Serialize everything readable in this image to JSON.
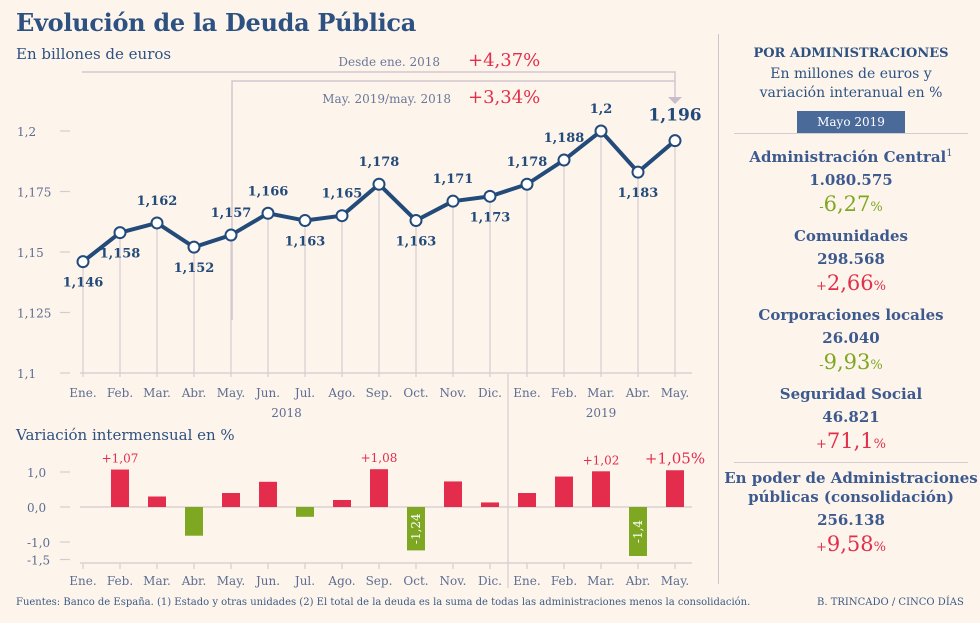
{
  "title": "Evolución de la Deuda Pública",
  "subtitle": "En billones de euros",
  "bar_subtitle": "Variación intermensual en %",
  "annotations": {
    "since_label": "Desde ene. 2018",
    "since_value": "+4,37%",
    "yoy_label": "May. 2019/may. 2018",
    "yoy_value": "+3,34%"
  },
  "footer": "Fuentes: Banco de España. (1) Estado y otras unidades (2) El total de la deuda es la suma de todas las administraciones menos la consolidación.",
  "credit": "B. TRINCADO / CINCO DÍAS",
  "colors": {
    "line": "#234b7a",
    "positive": "#e42d4c",
    "negative": "#7ea722",
    "grid": "#d6cbd0",
    "axis_text": "#5d6e92"
  },
  "chart_data": [
    {
      "type": "line",
      "title": "Evolución de la Deuda Pública",
      "ylabel": "En billones de euros",
      "categories": [
        "Ene.",
        "Feb.",
        "Mar.",
        "Abr.",
        "May.",
        "Jun.",
        "Jul.",
        "Ago.",
        "Sep.",
        "Oct.",
        "Nov.",
        "Dic.",
        "Ene.",
        "Feb.",
        "Mar.",
        "Abr.",
        "May."
      ],
      "years": [
        {
          "label": "2018",
          "start": 0,
          "end": 11
        },
        {
          "label": "2019",
          "start": 12,
          "end": 16
        }
      ],
      "values": [
        1.146,
        1.158,
        1.162,
        1.152,
        1.157,
        1.166,
        1.163,
        1.165,
        1.178,
        1.163,
        1.171,
        1.173,
        1.178,
        1.188,
        1.2,
        1.183,
        1.196
      ],
      "labels": [
        "1,146",
        "1,158",
        "1,162",
        "1,152",
        "1,157",
        "1,166",
        "1,163",
        "1,165",
        "1,178",
        "1,163",
        "1,171",
        "1,173",
        "1,178",
        "1,188",
        "1,2",
        "1,183",
        "1,196"
      ],
      "label_pos": [
        "below",
        "below",
        "above",
        "below",
        "above",
        "above",
        "below",
        "above",
        "above",
        "below",
        "above",
        "below",
        "above",
        "above",
        "above",
        "below",
        "above"
      ],
      "ylim": [
        1.1,
        1.2
      ],
      "yticks": [
        1.1,
        1.125,
        1.15,
        1.175,
        1.2
      ],
      "ytick_labels": [
        "1,1",
        "1,125",
        "1,15",
        "1,175",
        "1,2"
      ],
      "grid": false
    },
    {
      "type": "bar",
      "title": "Variación intermensual en %",
      "categories": [
        "Ene.",
        "Feb.",
        "Mar.",
        "Abr.",
        "May.",
        "Jun.",
        "Jul.",
        "Ago.",
        "Sep.",
        "Oct.",
        "Nov.",
        "Dic.",
        "Ene.",
        "Feb.",
        "Mar.",
        "Abr.",
        "May."
      ],
      "values": [
        null,
        1.07,
        0.3,
        -0.82,
        0.4,
        0.72,
        -0.28,
        0.2,
        1.08,
        -1.24,
        0.73,
        0.13,
        0.4,
        0.87,
        1.02,
        -1.4,
        1.05
      ],
      "data_labels": {
        "1": "+1,07",
        "8": "+1,08",
        "9": "-1,24",
        "14": "+1,02",
        "15": "-1,4",
        "16": "+1,05%"
      },
      "ylim": [
        -1.5,
        1.0
      ],
      "yticks": [
        1.0,
        0.0,
        -1.0,
        -1.5
      ],
      "ytick_labels": [
        "1,0",
        "0,0",
        "-1,0",
        "-1,5"
      ]
    }
  ],
  "panel": {
    "heading": "POR ADMINISTRACIONES",
    "subheading_1": "En millones de euros y",
    "subheading_2": "variación interanual en %",
    "badge": "Mayo 2019",
    "items": [
      {
        "name": "Administración Central",
        "sup": "1",
        "value": "1.080.575",
        "sign": "-",
        "change": "6,27",
        "pct": "%",
        "trend": "neg"
      },
      {
        "name": "Comunidades",
        "value": "298.568",
        "sign": "+",
        "change": "2,66",
        "pct": "%",
        "trend": "pos"
      },
      {
        "name": "Corporaciones locales",
        "value": "26.040",
        "sign": "-",
        "change": "9,93",
        "pct": "%",
        "trend": "neg"
      },
      {
        "name": "Seguridad Social",
        "value": "46.821",
        "sign": "+",
        "change": "71,1",
        "pct": "%",
        "trend": "pos"
      }
    ],
    "consolidation": {
      "name_1": "En poder de Administraciones",
      "name_2": "públicas (consolidación)",
      "value": "256.138",
      "sign": "+",
      "change": "9,58",
      "pct": "%"
    }
  }
}
